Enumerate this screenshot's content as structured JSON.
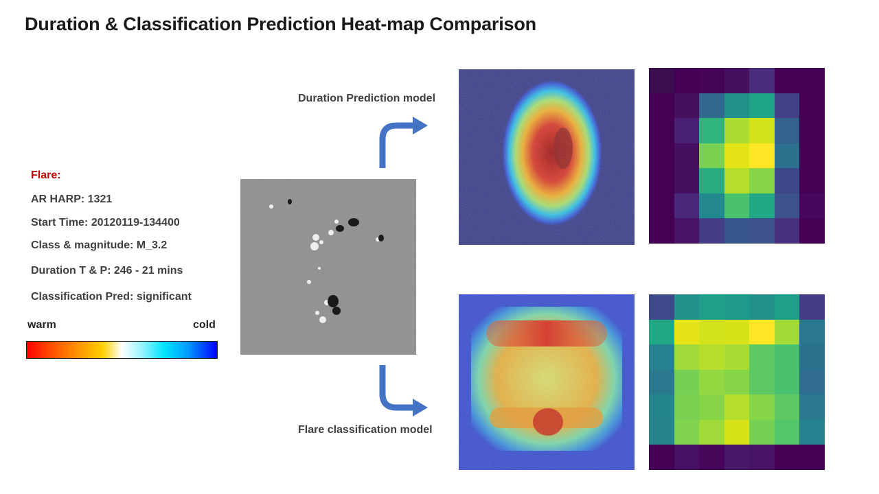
{
  "title": "Duration & Classification Prediction Heat-map Comparison",
  "flare_info": {
    "heading": "Flare:",
    "ar_harp": "AR HARP: 1321",
    "start_time": "Start Time: 20120119-134400",
    "class_magnitude": "Class & magnitude: M_3.2",
    "duration": "Duration T & P: 246 - 21 mins",
    "classification": "Classification Pred: significant"
  },
  "scale": {
    "warm": "warm",
    "cold": "cold"
  },
  "models": {
    "duration": "Duration Prediction model",
    "classification": "Flare classification model"
  },
  "colors": {
    "arrow": "#4472c4",
    "flare_heading": "#c00000"
  },
  "grids": {
    "duration": [
      [
        "#3b0f4f",
        "#440154",
        "#450457",
        "#45105f",
        "#472d7b",
        "#440154",
        "#440154"
      ],
      [
        "#440154",
        "#45105f",
        "#31688e",
        "#21918c",
        "#20a486",
        "#424186",
        "#440154"
      ],
      [
        "#440154",
        "#482173",
        "#2fb47c",
        "#addc30",
        "#d2e21b",
        "#33638d",
        "#440154"
      ],
      [
        "#440154",
        "#45105f",
        "#7ad151",
        "#e5e419",
        "#fde725",
        "#2c728e",
        "#440154"
      ],
      [
        "#440154",
        "#45105f",
        "#27ad81",
        "#b5de2b",
        "#86d549",
        "#3e4989",
        "#440154"
      ],
      [
        "#440154",
        "#482878",
        "#23898e",
        "#4ac16d",
        "#22a884",
        "#3b528b",
        "#46085c"
      ],
      [
        "#440154",
        "#471365",
        "#433e85",
        "#39568c",
        "#3b528b",
        "#472f7d",
        "#440154"
      ]
    ],
    "classification": [
      [
        "#3e4a89",
        "#21918c",
        "#1f9f88",
        "#1f9a8a",
        "#21918c",
        "#1f9e89",
        "#433e85"
      ],
      [
        "#22a884",
        "#e5e419",
        "#d2e21b",
        "#d8e219",
        "#fde725",
        "#a2da37",
        "#2a788e"
      ],
      [
        "#26828e",
        "#a0da39",
        "#b5de2b",
        "#a8db34",
        "#5ec962",
        "#4ac16d",
        "#2c718e"
      ],
      [
        "#2a788e",
        "#75d054",
        "#93d741",
        "#86d549",
        "#5ec962",
        "#4ac16d",
        "#2f6c8e"
      ],
      [
        "#25858e",
        "#7ad151",
        "#86d549",
        "#b5de2b",
        "#86d549",
        "#5ec962",
        "#2a788e"
      ],
      [
        "#25838e",
        "#7fd34e",
        "#a0da39",
        "#d8e219",
        "#75d054",
        "#54c568",
        "#26828e"
      ],
      [
        "#440154",
        "#471063",
        "#46075a",
        "#48186a",
        "#471365",
        "#440154",
        "#440154"
      ]
    ]
  }
}
